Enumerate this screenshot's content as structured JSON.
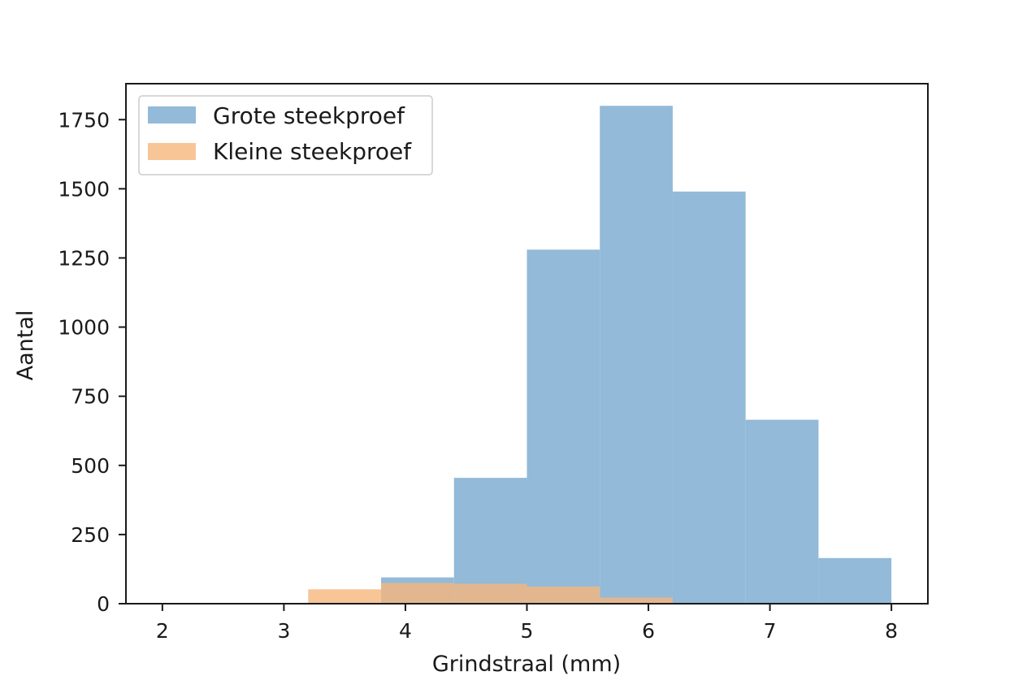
{
  "chart_data": {
    "type": "bar",
    "variant": "overlapping-histogram",
    "xlabel": "Grindstraal (mm)",
    "ylabel": "Aantal",
    "xlim": [
      1.7,
      8.3
    ],
    "ylim": [
      0,
      1880
    ],
    "x_ticks": [
      2,
      3,
      4,
      5,
      6,
      7,
      8
    ],
    "y_ticks": [
      0,
      250,
      500,
      750,
      1000,
      1250,
      1500,
      1750
    ],
    "grid": false,
    "legend_position": "upper-left",
    "series": [
      {
        "name": "Grote steekproef",
        "color": "#8db6d6",
        "bins": [
          {
            "x0": 3.8,
            "x1": 4.4,
            "value": 95
          },
          {
            "x0": 4.4,
            "x1": 5.0,
            "value": 455
          },
          {
            "x0": 5.0,
            "x1": 5.6,
            "value": 1280
          },
          {
            "x0": 5.6,
            "x1": 6.2,
            "value": 1800
          },
          {
            "x0": 6.2,
            "x1": 6.8,
            "value": 1490
          },
          {
            "x0": 6.8,
            "x1": 7.4,
            "value": 665
          },
          {
            "x0": 7.4,
            "x1": 8.0,
            "value": 165
          }
        ]
      },
      {
        "name": "Kleine steekproef",
        "color": "#f6b77d",
        "bins": [
          {
            "x0": 2.6,
            "x1": 3.2,
            "value": 3
          },
          {
            "x0": 3.2,
            "x1": 3.8,
            "value": 52
          },
          {
            "x0": 3.8,
            "x1": 4.4,
            "value": 75
          },
          {
            "x0": 4.4,
            "x1": 5.0,
            "value": 72
          },
          {
            "x0": 5.0,
            "x1": 5.6,
            "value": 62
          },
          {
            "x0": 5.6,
            "x1": 6.2,
            "value": 22
          }
        ]
      }
    ]
  }
}
